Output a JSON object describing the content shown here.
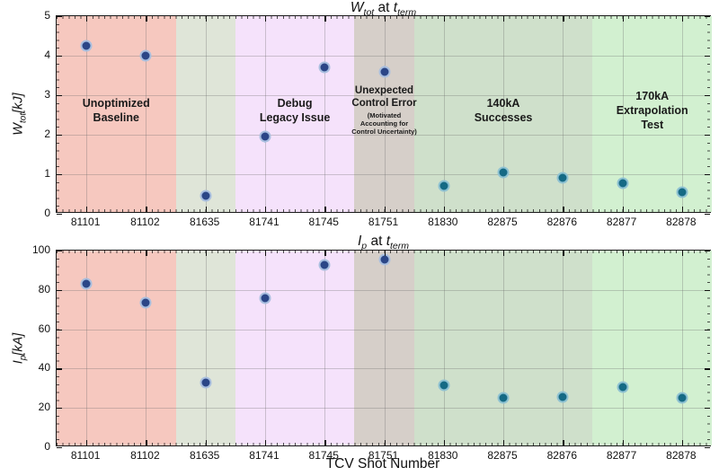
{
  "figure": {
    "xlabel": "TCV Shot Number",
    "categories": [
      "81101",
      "81102",
      "81635",
      "81741",
      "81745",
      "81751",
      "81830",
      "82875",
      "82876",
      "82877",
      "82878"
    ]
  },
  "bands": [
    {
      "from": 0,
      "to": 2,
      "color": "#f6c8bf",
      "label_lines": [
        "Unoptimized",
        "Baseline"
      ],
      "sub_lines": []
    },
    {
      "from": 2,
      "to": 3,
      "color": "#dfe5d8",
      "label_lines": [],
      "sub_lines": []
    },
    {
      "from": 3,
      "to": 5,
      "color": "#f5e2fb",
      "label_lines": [
        "Debug",
        "Legacy Issue"
      ],
      "sub_lines": []
    },
    {
      "from": 5,
      "to": 6,
      "color": "#d6cfc9",
      "label_lines": [
        "Unexpected",
        "Control Error"
      ],
      "sub_lines": [
        "(Motivated",
        "Accounting for",
        "Control Uncertainty)"
      ]
    },
    {
      "from": 6,
      "to": 9,
      "color": "#cfe0cb",
      "label_lines": [
        "140kA",
        "Successes"
      ],
      "sub_lines": []
    },
    {
      "from": 9,
      "to": 11,
      "color": "#d2f0d0",
      "label_lines": [
        "170kA",
        "Extrapolation",
        "Test"
      ],
      "sub_lines": []
    }
  ],
  "palette": [
    {
      "fill": "#2b4687",
      "edge": "#a9bfdf"
    },
    {
      "fill": "#156a85",
      "edge": "#8fc2d2"
    }
  ],
  "chart_data": [
    {
      "type": "scatter",
      "title": {
        "var1": "W",
        "sub1": "tot",
        "mid": " at ",
        "var2": "t",
        "sub2": "term"
      },
      "ylabel": {
        "var": "W",
        "sub": "tot",
        "unit": "[kJ]"
      },
      "categories": [
        "81101",
        "81102",
        "81635",
        "81741",
        "81745",
        "81751",
        "81830",
        "82875",
        "82876",
        "82877",
        "82878"
      ],
      "values": [
        4.25,
        4.0,
        0.45,
        1.95,
        3.7,
        3.6,
        0.7,
        1.05,
        0.9,
        0.78,
        0.55
      ],
      "errors": [
        0.12,
        0.12,
        0.1,
        0.15,
        0.12,
        0.15,
        0.1,
        0.12,
        0.1,
        0.12,
        0.1
      ],
      "point_color_index": [
        0,
        0,
        0,
        0,
        0,
        0,
        1,
        1,
        1,
        1,
        1
      ],
      "ylim": [
        0,
        5
      ],
      "yticks": [
        0,
        1,
        2,
        3,
        4,
        5
      ],
      "grid": true,
      "show_band_labels": true
    },
    {
      "type": "scatter",
      "title": {
        "var1": "I",
        "sub1": "p",
        "mid": " at ",
        "var2": "t",
        "sub2": "term"
      },
      "ylabel": {
        "var": "I",
        "sub": "p",
        "unit": "[kA]"
      },
      "categories": [
        "81101",
        "81102",
        "81635",
        "81741",
        "81745",
        "81751",
        "81830",
        "82875",
        "82876",
        "82877",
        "82878"
      ],
      "values": [
        83,
        73.5,
        33,
        76,
        92.5,
        95.5,
        31.5,
        25,
        25.5,
        30.5,
        25
      ],
      "errors": [
        2.5,
        2.5,
        2,
        2,
        2.5,
        2.5,
        2,
        2,
        2,
        2.5,
        2
      ],
      "point_color_index": [
        0,
        0,
        0,
        0,
        0,
        0,
        1,
        1,
        1,
        1,
        1
      ],
      "ylim": [
        0,
        100
      ],
      "yticks": [
        0,
        20,
        40,
        60,
        80,
        100
      ],
      "grid": true,
      "show_band_labels": false
    }
  ]
}
